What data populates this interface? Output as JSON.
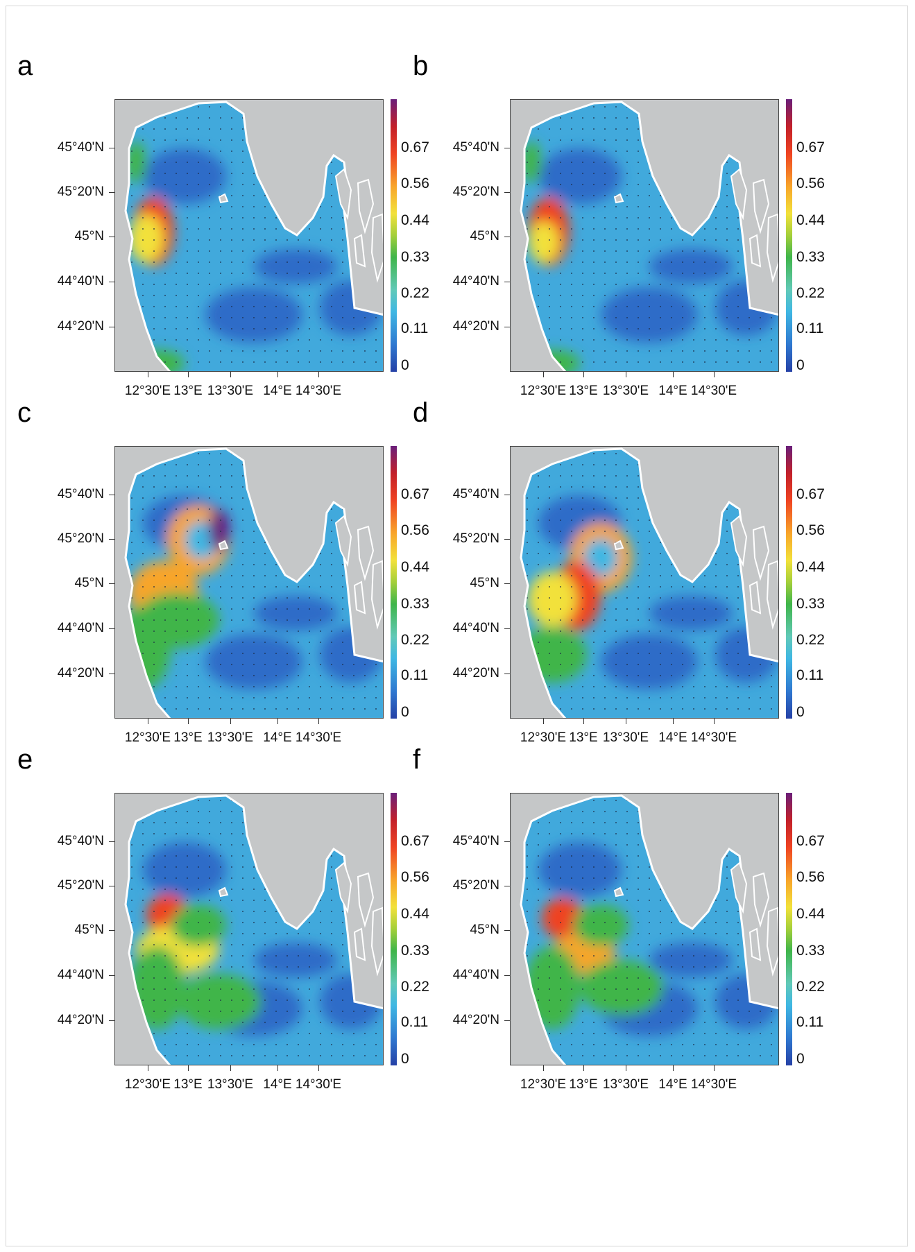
{
  "panels": [
    {
      "label": "a"
    },
    {
      "label": "b"
    },
    {
      "label": "c"
    },
    {
      "label": "d"
    },
    {
      "label": "e"
    },
    {
      "label": "f"
    }
  ],
  "latitude_labels": [
    "45°40'N",
    "45°20'N",
    "45°N",
    "44°40'N",
    "44°20'N"
  ],
  "longitude_labels": [
    "12°30'E",
    "13°E",
    "13°30'E",
    "14°E",
    "14°30'E"
  ],
  "colorbar_labels": [
    "0.67",
    "0.56",
    "0.44",
    "0.33",
    "0.22",
    "0.11",
    "0"
  ],
  "colorbar_colors": [
    "#2541a6",
    "#2f78d0",
    "#3fb7e3",
    "#3fb54a",
    "#f2e13a",
    "#f8a52a",
    "#ef4322",
    "#c2202a",
    "#6a1f7a"
  ],
  "land_color": "#c5c7c8",
  "ocean_base_color": "#41a9dc"
}
